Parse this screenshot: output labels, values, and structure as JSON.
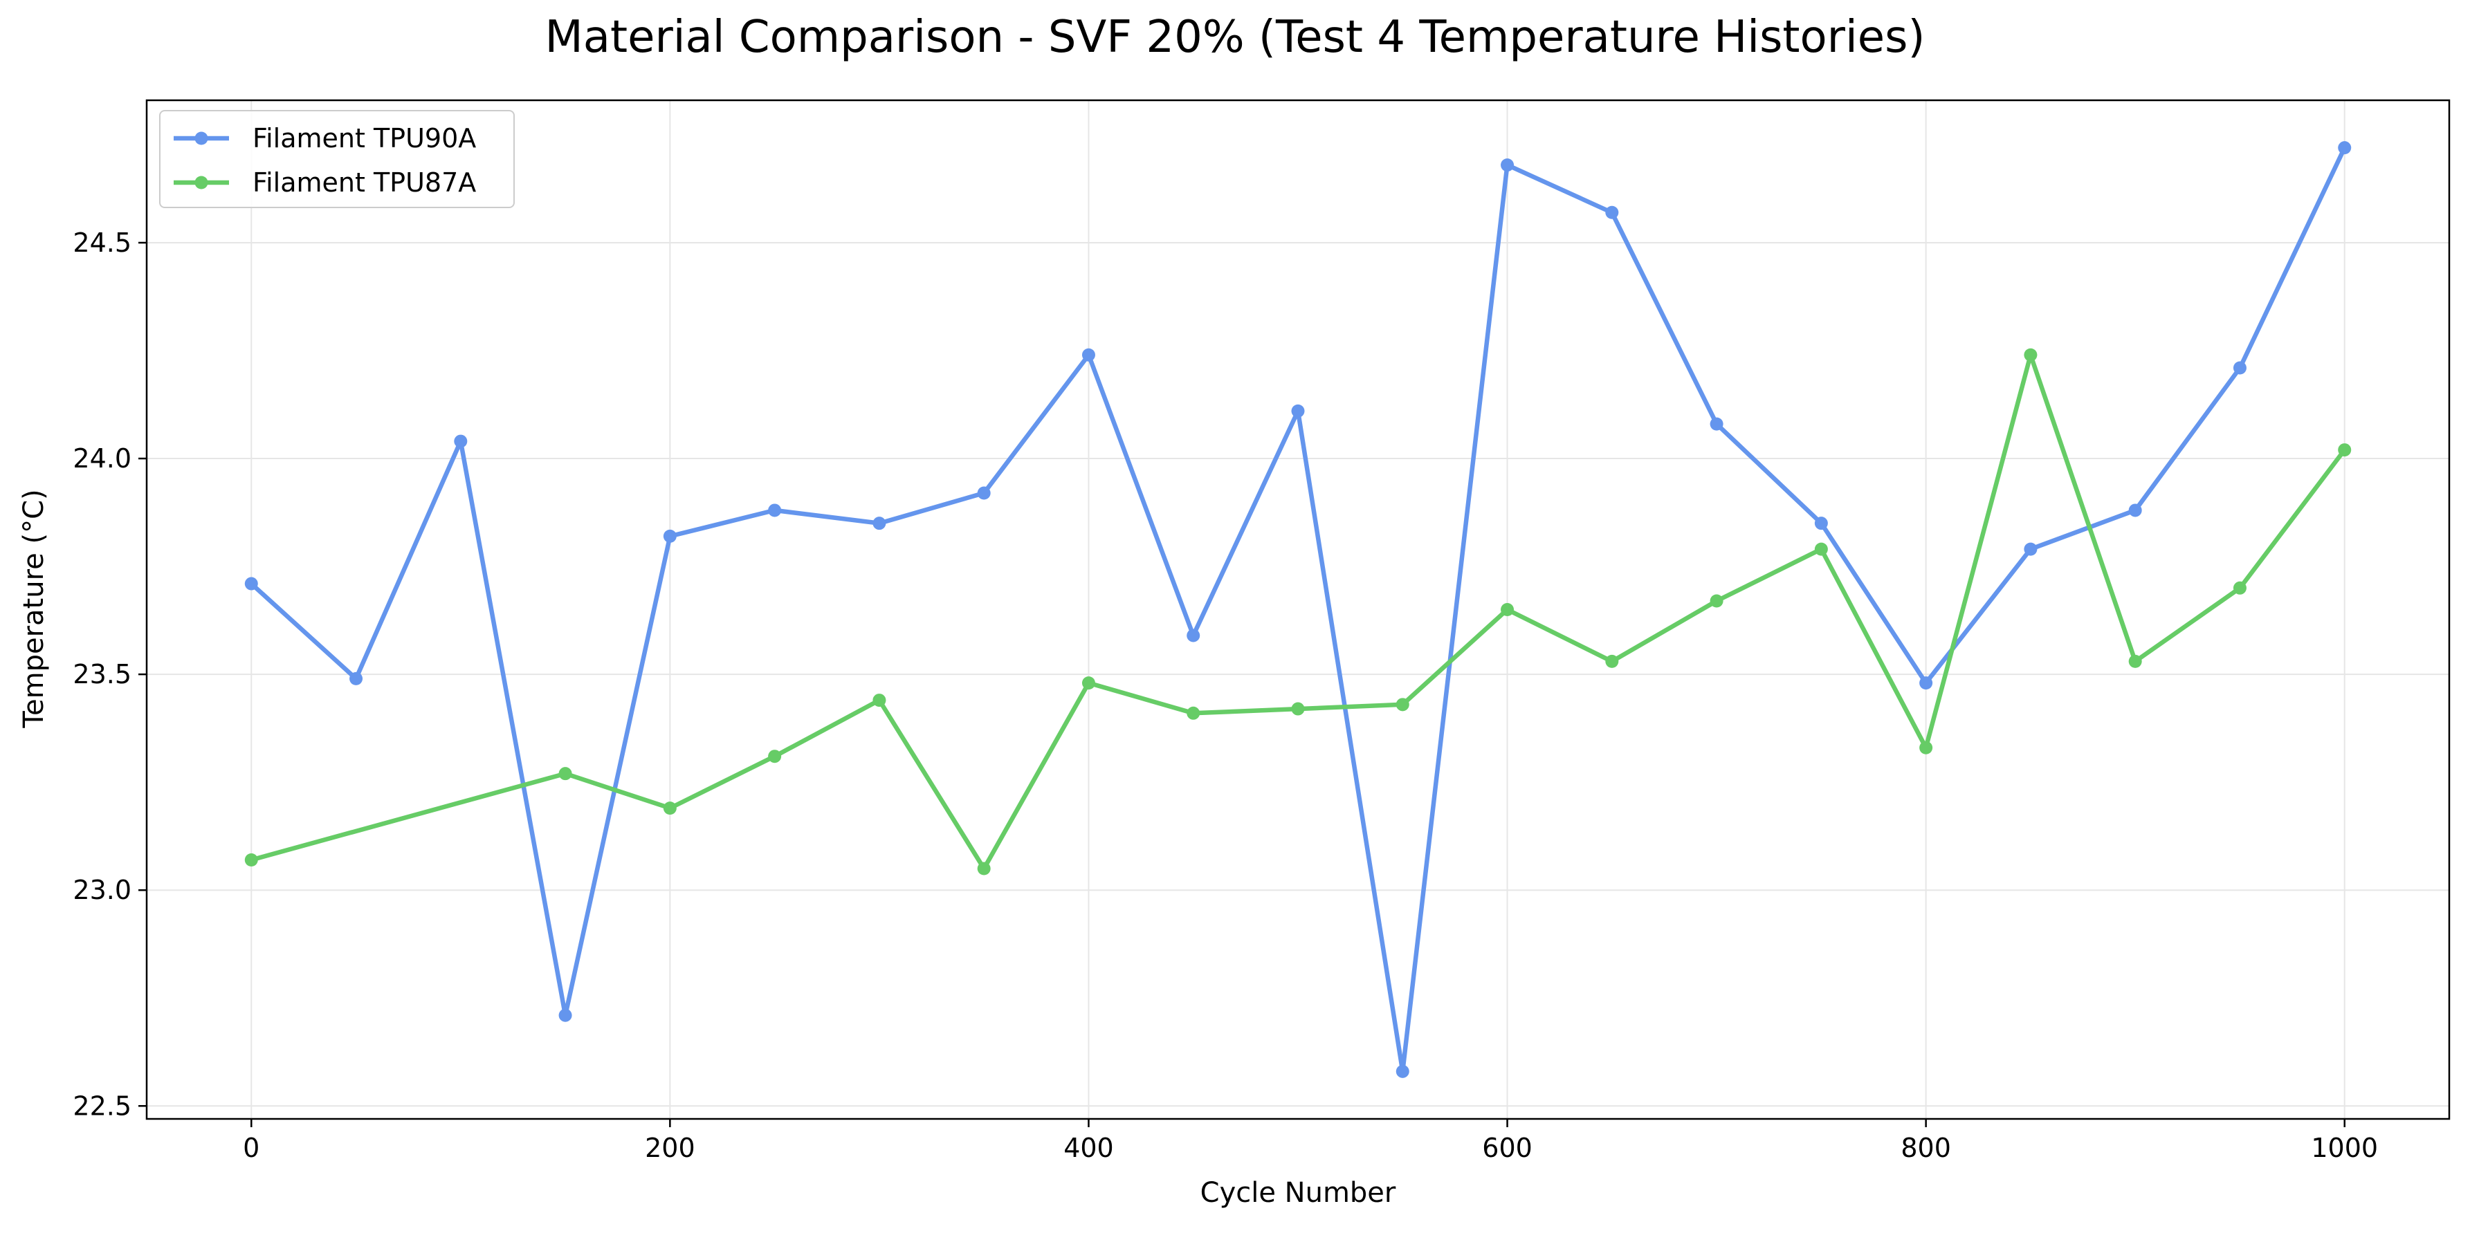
{
  "chart_data": {
    "type": "line",
    "title": "Material Comparison - SVF 20% (Test 4 Temperature Histories)",
    "xlabel": "Cycle Number",
    "ylabel": "Temperature (°C)",
    "xlim": [
      -50,
      1050
    ],
    "ylim": [
      22.47,
      24.83
    ],
    "xticks": [
      0,
      200,
      400,
      600,
      800,
      1000
    ],
    "xtick_labels": [
      "0",
      "200",
      "400",
      "600",
      "800",
      "1000"
    ],
    "yticks": [
      22.5,
      23.0,
      23.5,
      24.0,
      24.5
    ],
    "ytick_labels": [
      "22.5",
      "23.0",
      "23.5",
      "24.0",
      "24.5"
    ],
    "grid": true,
    "legend_position": "upper-left",
    "series": [
      {
        "name": "Filament TPU90A",
        "color": "#6495ED",
        "x": [
          0,
          50,
          100,
          150,
          200,
          250,
          300,
          350,
          400,
          450,
          500,
          550,
          600,
          650,
          700,
          750,
          800,
          850,
          900,
          950,
          1000
        ],
        "y": [
          23.71,
          23.49,
          24.04,
          22.71,
          23.82,
          23.88,
          23.85,
          23.92,
          24.24,
          23.59,
          24.11,
          22.58,
          24.68,
          24.57,
          24.08,
          23.85,
          23.48,
          23.79,
          23.88,
          24.21,
          24.72
        ]
      },
      {
        "name": "Filament TPU87A",
        "color": "#66CC66",
        "x": [
          0,
          150,
          200,
          250,
          300,
          350,
          400,
          450,
          500,
          550,
          600,
          650,
          700,
          750,
          800,
          850,
          900,
          950,
          1000
        ],
        "y": [
          23.07,
          23.27,
          23.19,
          23.31,
          23.44,
          23.05,
          23.48,
          23.41,
          23.42,
          23.43,
          23.65,
          23.53,
          23.67,
          23.79,
          23.33,
          24.24,
          23.53,
          23.7,
          24.02
        ]
      }
    ]
  }
}
